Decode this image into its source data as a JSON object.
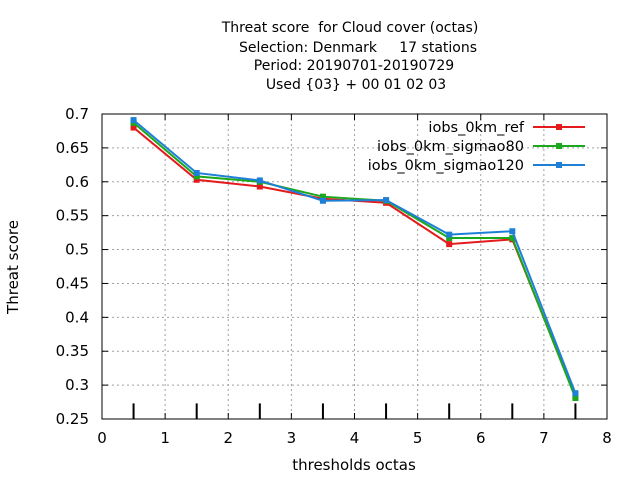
{
  "chart_data": {
    "type": "line",
    "title_lines": [
      "Threat score  for Cloud cover (octas)",
      "Selection: Denmark     17 stations",
      "Period: 20190701-20190729",
      "Used {03} + 00 01 02 03"
    ],
    "xlabel": "thresholds octas",
    "ylabel": "Threat score",
    "xlim": [
      0,
      8
    ],
    "ylim": [
      0.25,
      0.7
    ],
    "xticks": [
      "0",
      "1",
      "2",
      "3",
      "4",
      "5",
      "6",
      "7",
      "8"
    ],
    "yticks": [
      "0.25",
      "0.3",
      "0.35",
      "0.4",
      "0.45",
      "0.5",
      "0.55",
      "0.6",
      "0.65",
      "0.7"
    ],
    "grid": true,
    "legend_position": "top-right",
    "x": [
      0.5,
      1.5,
      2.5,
      3.5,
      4.5,
      5.5,
      6.5,
      7.5
    ],
    "series": [
      {
        "name": "iobs_0km_ref",
        "color": "#e41a1c",
        "values": [
          0.68,
          0.603,
          0.593,
          0.575,
          0.569,
          0.508,
          0.515,
          0.283
        ]
      },
      {
        "name": "iobs_0km_sigmao80",
        "color": "#1ca81c",
        "values": [
          0.687,
          0.608,
          0.6,
          0.578,
          0.572,
          0.517,
          0.517,
          0.281
        ]
      },
      {
        "name": "iobs_0km_sigmao120",
        "color": "#1e7fd6",
        "values": [
          0.691,
          0.613,
          0.602,
          0.572,
          0.573,
          0.522,
          0.527,
          0.288
        ]
      }
    ],
    "bars": {
      "x": [
        0.5,
        1.5,
        2.5,
        3.5,
        4.5,
        5.5,
        6.5,
        7.5
      ],
      "bottom": 0.25,
      "top": 0.273
    }
  }
}
